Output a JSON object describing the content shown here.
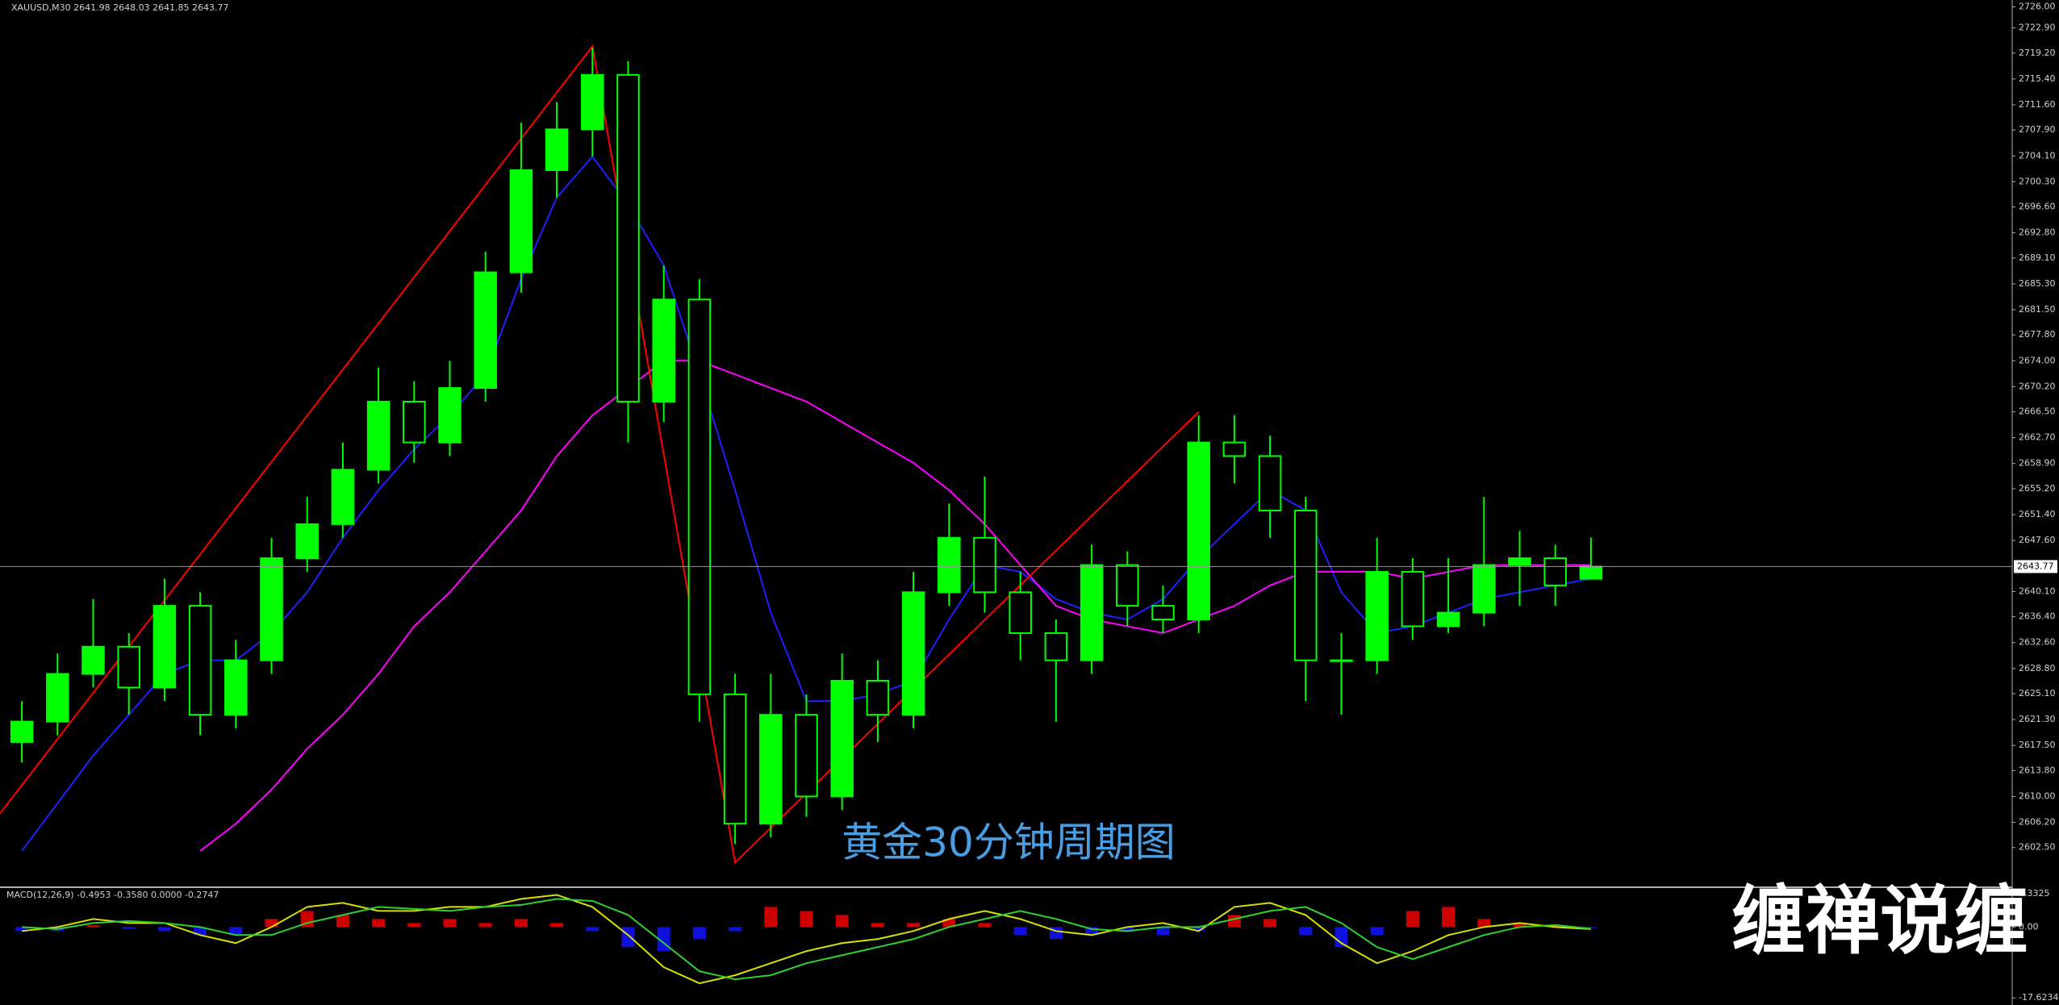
{
  "chart_data": [
    {
      "type": "candlestick",
      "title": "XAUUSD,M30 2641.98 2648.03 2641.85 2643.77",
      "annotation": "黄金30分钟周期图",
      "open": [
        2618,
        2621,
        2628,
        2632,
        2626,
        2638,
        2622,
        2630,
        2645,
        2650,
        2658,
        2668,
        2662,
        2670,
        2687,
        2702,
        2708,
        2716,
        2668,
        2683,
        2625,
        2606,
        2622,
        2610,
        2627,
        2622,
        2640,
        2648,
        2640,
        2634,
        2630,
        2644,
        2638,
        2636,
        2662,
        2660,
        2652,
        2630,
        2630,
        2643,
        2635,
        2637,
        2644,
        2645,
        2641.98
      ],
      "high": [
        2624,
        2631,
        2639,
        2634,
        2642,
        2640,
        2633,
        2648,
        2654,
        2662,
        2673,
        2671,
        2674,
        2690,
        2709,
        2712,
        2720,
        2718,
        2688,
        2686,
        2628,
        2628,
        2625,
        2631,
        2630,
        2643,
        2653,
        2657,
        2643,
        2636,
        2647,
        2646,
        2641,
        2666,
        2666,
        2663,
        2654,
        2634,
        2648,
        2645,
        2645,
        2654,
        2649,
        2647,
        2648.03
      ],
      "low": [
        2615,
        2619,
        2626,
        2622,
        2624,
        2619,
        2620,
        2628,
        2643,
        2648,
        2656,
        2659,
        2660,
        2668,
        2684,
        2698,
        2704,
        2662,
        2665,
        2621,
        2603,
        2604,
        2607,
        2608,
        2618,
        2620,
        2638,
        2637,
        2630,
        2621,
        2628,
        2635,
        2634,
        2634,
        2656,
        2648,
        2624,
        2622,
        2628,
        2633,
        2634,
        2635,
        2638,
        2638,
        2641.85
      ],
      "close": [
        2621,
        2628,
        2632,
        2626,
        2638,
        2622,
        2630,
        2645,
        2650,
        2658,
        2668,
        2662,
        2670,
        2687,
        2702,
        2708,
        2716,
        2668,
        2683,
        2625,
        2606,
        2622,
        2610,
        2627,
        2622,
        2640,
        2648,
        2640,
        2634,
        2630,
        2644,
        2638,
        2636,
        2662,
        2660,
        2652,
        2630,
        2630,
        2643,
        2635,
        2637,
        2644,
        2645,
        2641,
        2643.77
      ],
      "up_color": "#00ff00",
      "down_color": "#000000",
      "wick_color": "#00ff00",
      "series": [
        {
          "color": "#2020ff",
          "values": [
            2602,
            2609,
            2616,
            2622,
            2628,
            2630,
            2630,
            2634,
            2640,
            2648,
            2655,
            2661,
            2666,
            2672,
            2686,
            2698,
            2704,
            2697,
            2688,
            2672,
            2655,
            2637,
            2624,
            2624,
            2625,
            2627,
            2636,
            2644,
            2643,
            2639,
            2637,
            2636,
            2639,
            2645,
            2650,
            2655,
            2652,
            2640,
            2634,
            2635,
            2637,
            2639,
            2640,
            2641,
            2642
          ]
        },
        {
          "color": "#ff00ff",
          "values": [
            null,
            null,
            null,
            null,
            null,
            2602,
            2606,
            2611,
            2617,
            2622,
            2628,
            2635,
            2640,
            2646,
            2652,
            2660,
            2666,
            2670,
            2674,
            2674,
            2672,
            2670,
            2668,
            2665,
            2662,
            2659,
            2655,
            2650,
            2644,
            2638,
            2636,
            2635,
            2634,
            2636,
            2638,
            2641,
            2643,
            2643,
            2643,
            2642,
            2643,
            2644,
            2644,
            2644,
            2644
          ]
        }
      ],
      "zigzag": {
        "color": "#ff0000",
        "x": [
          0,
          16,
          20,
          33
        ],
        "values": [
          2607.5,
          2720.2,
          2600.3,
          2666.5
        ]
      },
      "last_price": {
        "value": 2643.77,
        "label": "2643.77"
      },
      "ylim": [
        2596.9,
        2727
      ],
      "yticks": [
        {
          "value": 2726.0,
          "label": "2726.00"
        },
        {
          "value": 2722.9,
          "label": "2722.90"
        },
        {
          "value": 2719.2,
          "label": "2719.20"
        },
        {
          "value": 2715.4,
          "label": "2715.40"
        },
        {
          "value": 2711.6,
          "label": "2711.60"
        },
        {
          "value": 2707.9,
          "label": "2707.90"
        },
        {
          "value": 2704.1,
          "label": "2704.10"
        },
        {
          "value": 2700.3,
          "label": "2700.30"
        },
        {
          "value": 2696.6,
          "label": "2696.60"
        },
        {
          "value": 2692.8,
          "label": "2692.80"
        },
        {
          "value": 2689.1,
          "label": "2689.10"
        },
        {
          "value": 2685.3,
          "label": "2685.30"
        },
        {
          "value": 2681.5,
          "label": "2681.50"
        },
        {
          "value": 2677.8,
          "label": "2677.80"
        },
        {
          "value": 2674.0,
          "label": "2674.00"
        },
        {
          "value": 2670.2,
          "label": "2670.20"
        },
        {
          "value": 2666.5,
          "label": "2666.50"
        },
        {
          "value": 2662.7,
          "label": "2662.70"
        },
        {
          "value": 2658.9,
          "label": "2658.90"
        },
        {
          "value": 2655.2,
          "label": "2655.20"
        },
        {
          "value": 2651.4,
          "label": "2651.40"
        },
        {
          "value": 2647.6,
          "label": "2647.60"
        },
        {
          "value": 2640.1,
          "label": "2640.10"
        },
        {
          "value": 2636.4,
          "label": "2636.40"
        },
        {
          "value": 2632.6,
          "label": "2632.60"
        },
        {
          "value": 2628.8,
          "label": "2628.80"
        },
        {
          "value": 2625.1,
          "label": "2625.10"
        },
        {
          "value": 2621.3,
          "label": "2621.30"
        },
        {
          "value": 2617.5,
          "label": "2617.50"
        },
        {
          "value": 2613.8,
          "label": "2613.80"
        },
        {
          "value": 2610.0,
          "label": "2610.00"
        },
        {
          "value": 2606.2,
          "label": "2606.20"
        },
        {
          "value": 2602.5,
          "label": "2602.50"
        }
      ]
    },
    {
      "type": "macd",
      "title": "MACD(12,26,9) -0.4953 -0.3580 0.0000 -0.2747",
      "values": [
        -1,
        -1,
        0.5,
        -0.5,
        -1,
        -2,
        -2,
        2,
        4,
        3,
        2,
        1,
        2,
        1,
        2,
        1,
        -1,
        -5,
        -6,
        -3,
        -1,
        5,
        4,
        3,
        1,
        1,
        2,
        1,
        -2,
        -3,
        -2,
        -1,
        -2,
        -1,
        3,
        2,
        -2,
        -5,
        -2,
        4,
        5,
        2,
        1,
        0.5,
        -0.27
      ],
      "positive_color": "#cc0000",
      "negative_color": "#1010dd",
      "series": [
        {
          "color": "#d8e000",
          "values": [
            -1,
            0,
            2,
            1,
            1,
            -2,
            -4,
            0,
            5,
            6,
            4,
            4,
            5,
            5,
            7,
            8,
            5,
            -2,
            -10,
            -14,
            -12,
            -9,
            -6,
            -4,
            -3,
            -1,
            2,
            4,
            2,
            -1,
            -2,
            0,
            1,
            -1,
            5,
            6,
            3,
            -4,
            -9,
            -6,
            -2,
            0,
            1,
            0,
            -0.5
          ]
        },
        {
          "color": "#30d030",
          "values": [
            0,
            -0.5,
            1,
            1.5,
            1,
            0,
            -2,
            -2,
            1,
            3,
            5,
            4.5,
            4,
            5,
            5.5,
            7,
            6.5,
            3,
            -4,
            -11,
            -13,
            -12,
            -9,
            -7,
            -5,
            -3,
            0,
            2,
            4,
            2,
            -0.5,
            -1,
            0,
            0,
            2,
            4,
            5,
            1,
            -5,
            -8,
            -5,
            -2,
            0,
            0.5,
            -0.4
          ]
        }
      ],
      "ylim": [
        -19.4,
        9.5
      ],
      "yticks": [
        8.3325,
        {
          "value": 0,
          "label": "0.00"
        },
        -17.6234
      ]
    }
  ],
  "watermark": "缠禅说缠"
}
